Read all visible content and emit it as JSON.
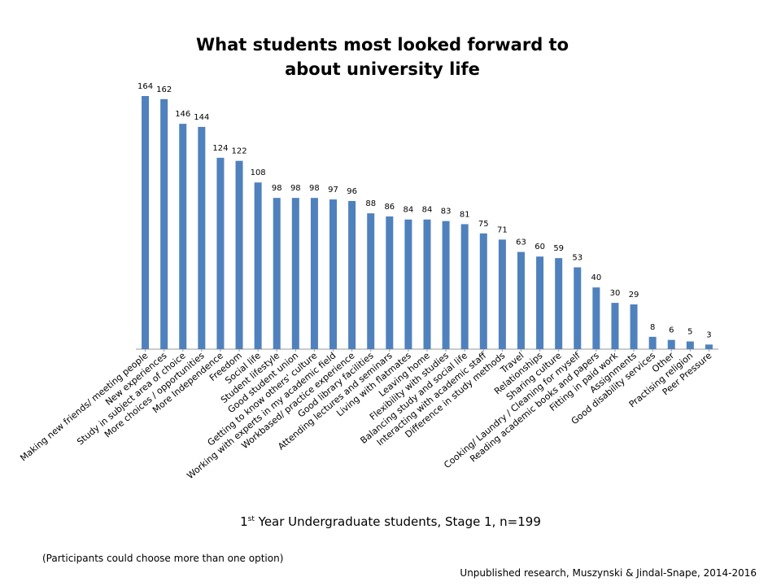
{
  "chart_data": {
    "type": "bar",
    "title_line1": "What students most looked forward to",
    "title_line2": "about university life",
    "categories": [
      "Making new friends/ meeting people",
      "New experiences",
      "Study in subject area of choice",
      "More choices / opportunities",
      "More Independence",
      "Freedom",
      "Social life",
      "Student lifestyle",
      "Good student union",
      "Getting to know others' culture",
      "Working with experts in my academic field",
      "Workbased/ practice experience",
      "Good library facilities",
      "Attending lectures and seminars",
      "Living with flatmates",
      "Leaving home",
      "Flexibility with studies",
      "Balancing study and social life",
      "Interacting with academic staff",
      "Difference in study methods",
      "Travel",
      "Relationships",
      "Sharing culture",
      "Cooking/ Laundry / Cleaning for myself",
      "Reading academic books and papers",
      "Fitting in paid work",
      "Assignments",
      "Good disability services",
      "Other",
      "Practising religion",
      "Peer Pressure"
    ],
    "values": [
      164,
      162,
      146,
      144,
      124,
      122,
      108,
      98,
      98,
      98,
      97,
      96,
      88,
      86,
      84,
      84,
      83,
      81,
      75,
      71,
      63,
      60,
      59,
      53,
      40,
      30,
      29,
      8,
      6,
      5,
      3
    ],
    "bar_color": "#4F81BD",
    "ylim": [
      0,
      164
    ],
    "grid": false,
    "legend": "none",
    "data_labels": true
  },
  "caption": {
    "prefix": "1",
    "sup": "st",
    "suffix": " Year Undergraduate students, Stage 1, n=199"
  },
  "footnote": "(Participants could choose more than one option)",
  "source": "Unpublished research, Muszynski & Jindal-Snape, 2014-2016"
}
